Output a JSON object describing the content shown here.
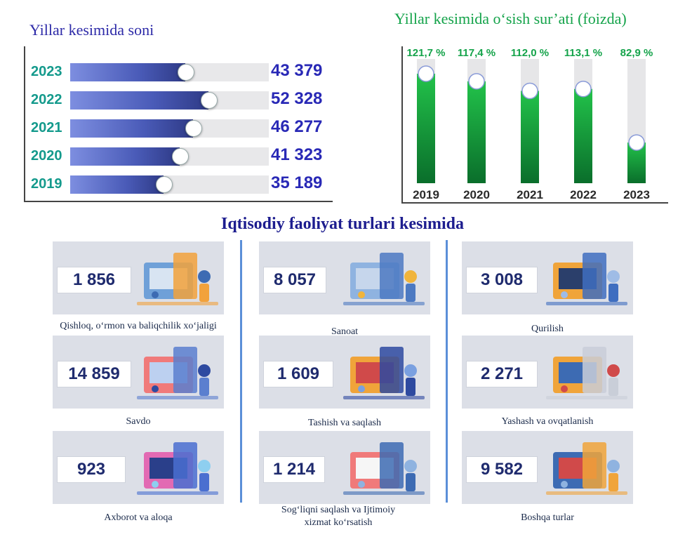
{
  "left_chart_title": "Yillar kesimida soni",
  "right_chart_title": "Yillar kesimida o‘sish sur’ati (foizda)",
  "section_title": "Iqtisodiy faoliyat turlari kesimida",
  "colors": {
    "bar_fill": "#4a5bb8",
    "bar_track": "#e8e8ea",
    "year_text": "#149a8c",
    "value_text": "#2929b6",
    "growth_fill": "#0f9a3a",
    "growth_text": "#14a34a"
  },
  "chart_data": [
    {
      "type": "bar",
      "orientation": "horizontal",
      "title": "Yillar kesimida soni",
      "categories": [
        "2023",
        "2022",
        "2021",
        "2020",
        "2019"
      ],
      "values": [
        43379,
        52328,
        46277,
        41323,
        35189
      ],
      "value_labels": [
        "43 379",
        "52 328",
        "46 277",
        "41 323",
        "35 189"
      ],
      "xlim": [
        0,
        75000
      ]
    },
    {
      "type": "bar",
      "orientation": "vertical",
      "title": "Yillar kesimida o‘sish sur’ati (foizda)",
      "categories": [
        "2019",
        "2020",
        "2021",
        "2022",
        "2023"
      ],
      "values": [
        121.7,
        117.4,
        112.0,
        113.1,
        82.9
      ],
      "value_labels": [
        "121,7 %",
        "117,4 %",
        "112,0 %",
        "113,1 %",
        "82,9 %"
      ]
    }
  ],
  "sectors": [
    {
      "value": "1 856",
      "label": "Qishloq, o‘rmon va baliqchilik xo‘jaligi",
      "icon": "farm-icon"
    },
    {
      "value": "8 057",
      "label": "Sanoat",
      "icon": "factory-icon"
    },
    {
      "value": "3 008",
      "label": "Qurilish",
      "icon": "construction-icon"
    },
    {
      "value": "14 859",
      "label": "Savdo",
      "icon": "shopping-icon"
    },
    {
      "value": "1 609",
      "label": "Tashish va saqlash",
      "icon": "truck-icon"
    },
    {
      "value": "2 271",
      "label": "Yashash va ovqatlanish",
      "icon": "food-service-icon"
    },
    {
      "value": "923",
      "label": "Axborot va aloqa",
      "icon": "it-icon"
    },
    {
      "value": "1 214",
      "label": "Sog‘liqni saqlash va Ijtimoiy xizmat ko‘rsatish",
      "icon": "health-icon"
    },
    {
      "value": "9 582",
      "label": "Boshqa turlar",
      "icon": "chart-growth-icon"
    }
  ]
}
